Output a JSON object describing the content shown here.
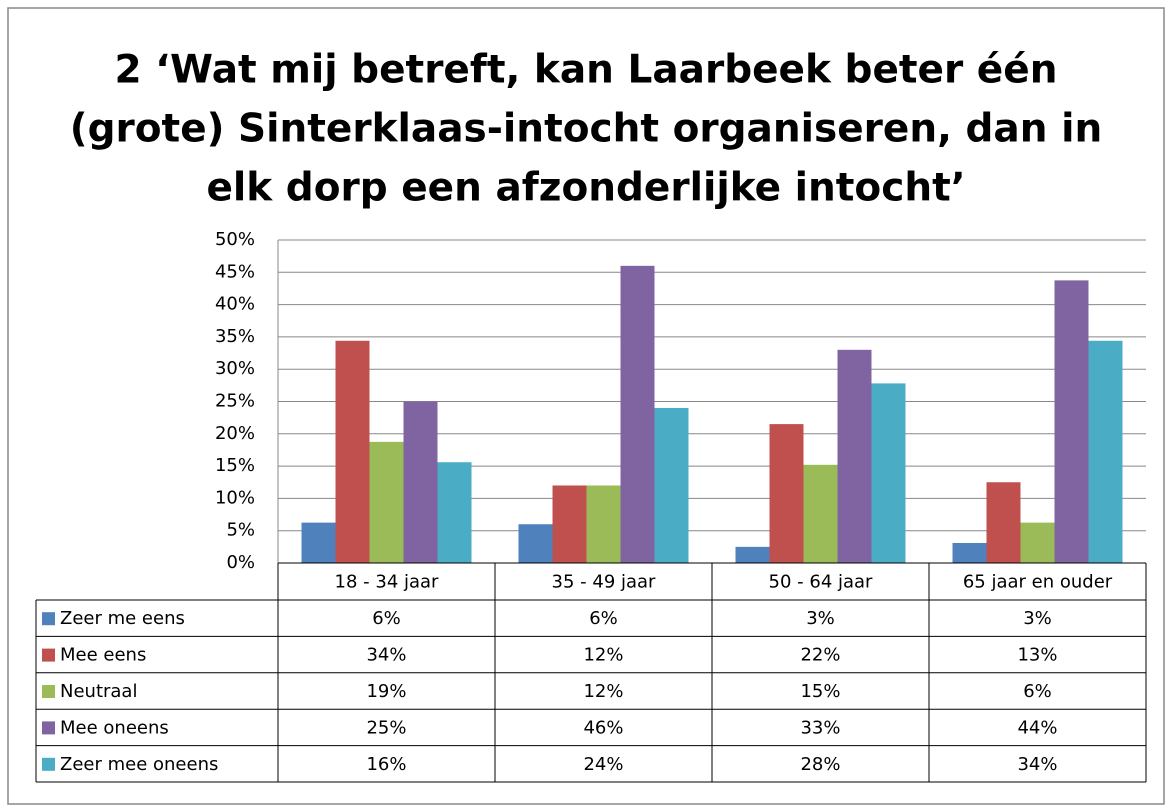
{
  "chart_data": {
    "type": "bar",
    "title": [
      "2 ‘Wat mij betreft, kan Laarbeek beter één",
      "(grote) Sinterklaas-intocht organiseren, dan in",
      "elk dorp een afzonderlijke intocht’"
    ],
    "categories": [
      "18 - 34 jaar",
      "35 - 49 jaar",
      "50 - 64 jaar",
      "65 jaar en ouder"
    ],
    "series": [
      {
        "name": "Zeer me eens",
        "color": "#4f81bd",
        "values": [
          6.25,
          6,
          2.5,
          3.1
        ],
        "value_labels": [
          "6%",
          "6%",
          "3%",
          "3%"
        ]
      },
      {
        "name": "Mee eens",
        "color": "#c0504d",
        "values": [
          34.4,
          12,
          21.5,
          12.5
        ],
        "value_labels": [
          "34%",
          "12%",
          "22%",
          "13%"
        ]
      },
      {
        "name": "Neutraal",
        "color": "#9bbb59",
        "values": [
          18.75,
          12,
          15.2,
          6.25
        ],
        "value_labels": [
          "19%",
          "12%",
          "15%",
          "6%"
        ]
      },
      {
        "name": "Mee oneens",
        "color": "#8064a2",
        "values": [
          25,
          46,
          33,
          43.75
        ],
        "value_labels": [
          "25%",
          "46%",
          "33%",
          "44%"
        ]
      },
      {
        "name": "Zeer mee oneens",
        "color": "#4bacc6",
        "values": [
          15.6,
          24,
          27.8,
          34.4
        ],
        "value_labels": [
          "16%",
          "24%",
          "28%",
          "34%"
        ]
      }
    ],
    "ylim": [
      0,
      50
    ],
    "yticks": [
      {
        "value": 0,
        "label": "0%"
      },
      {
        "value": 5,
        "label": "5%"
      },
      {
        "value": 10,
        "label": "10%"
      },
      {
        "value": 15,
        "label": "15%"
      },
      {
        "value": 20,
        "label": "20%"
      },
      {
        "value": 25,
        "label": "25%"
      },
      {
        "value": 30,
        "label": "30%"
      },
      {
        "value": 35,
        "label": "35%"
      },
      {
        "value": 40,
        "label": "40%"
      },
      {
        "value": 45,
        "label": "45%"
      },
      {
        "value": 50,
        "label": "50%"
      }
    ],
    "grid": true
  }
}
